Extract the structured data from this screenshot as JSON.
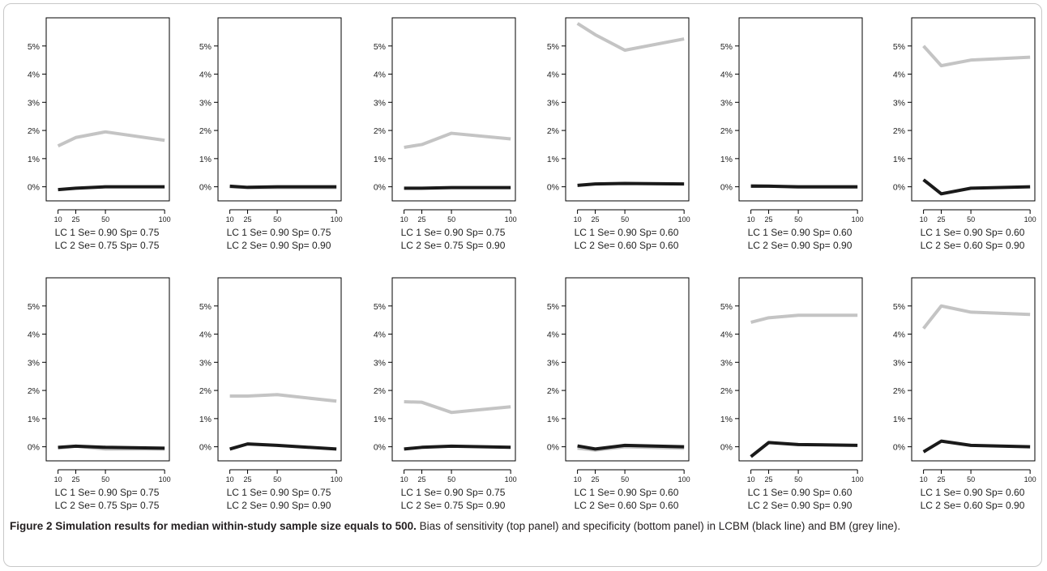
{
  "chart_data": {
    "type": "line",
    "x": [
      10,
      25,
      50,
      100
    ],
    "x_tick_labels": [
      "10",
      "25",
      "50",
      "100"
    ],
    "y_tick_labels": [
      "0%",
      "1%",
      "2%",
      "3%",
      "4%",
      "5%"
    ],
    "ylim": [
      -0.5,
      6.0
    ],
    "grid": false,
    "series_colors": {
      "LCBM": "#1a1a1a",
      "BM": "#c4c4c4"
    },
    "panels": [
      {
        "lc1": "LC 1  Se= 0.90 Sp= 0.75",
        "lc2": "LC 2  Se= 0.75 Sp= 0.75",
        "black": [
          -0.1,
          -0.05,
          0.0,
          0.0
        ],
        "grey": [
          1.45,
          1.75,
          1.95,
          1.65
        ]
      },
      {
        "lc1": "LC 1  Se= 0.90 Sp= 0.75",
        "lc2": "LC 2  Se= 0.90 Sp= 0.90",
        "black": [
          0.02,
          -0.02,
          0.0,
          0.0
        ],
        "grey": [
          0.0,
          -0.03,
          -0.03,
          -0.03
        ]
      },
      {
        "lc1": "LC 1  Se= 0.90 Sp= 0.75",
        "lc2": "LC 2  Se= 0.75 Sp= 0.90",
        "black": [
          -0.05,
          -0.05,
          -0.03,
          -0.03
        ],
        "grey": [
          1.4,
          1.5,
          1.9,
          1.7
        ]
      },
      {
        "lc1": "LC 1  Se= 0.90 Sp= 0.60",
        "lc2": "LC 2  Se= 0.60 Sp= 0.60",
        "black": [
          0.05,
          0.1,
          0.12,
          0.1
        ],
        "grey": [
          5.8,
          5.4,
          4.85,
          5.25
        ]
      },
      {
        "lc1": "LC 1  Se= 0.90 Sp= 0.60",
        "lc2": "LC 2  Se= 0.90 Sp= 0.90",
        "black": [
          0.02,
          0.02,
          0.0,
          0.0
        ],
        "grey": [
          0.05,
          0.03,
          -0.02,
          -0.02
        ]
      },
      {
        "lc1": "LC 1  Se= 0.90 Sp= 0.60",
        "lc2": "LC 2  Se= 0.60 Sp= 0.90",
        "black": [
          0.25,
          -0.25,
          -0.05,
          0.0
        ],
        "grey": [
          5.0,
          4.3,
          4.5,
          4.6
        ]
      },
      {
        "lc1": "LC 1  Se= 0.90 Sp= 0.75",
        "lc2": "LC 2  Se= 0.75 Sp= 0.75",
        "black": [
          -0.02,
          0.02,
          -0.02,
          -0.05
        ],
        "grey": [
          -0.05,
          0.02,
          -0.08,
          -0.08
        ]
      },
      {
        "lc1": "LC 1  Se= 0.90 Sp= 0.75",
        "lc2": "LC 2  Se= 0.90 Sp= 0.90",
        "black": [
          -0.08,
          0.1,
          0.05,
          -0.08
        ],
        "grey": [
          1.8,
          1.8,
          1.85,
          1.62
        ]
      },
      {
        "lc1": "LC 1  Se= 0.90 Sp= 0.75",
        "lc2": "LC 2  Se= 0.75 Sp= 0.90",
        "black": [
          -0.08,
          -0.02,
          0.02,
          -0.02
        ],
        "grey": [
          1.6,
          1.58,
          1.22,
          1.42
        ]
      },
      {
        "lc1": "LC 1  Se= 0.90 Sp= 0.60",
        "lc2": "LC 2  Se= 0.60 Sp= 0.60",
        "black": [
          0.03,
          -0.08,
          0.05,
          0.0
        ],
        "grey": [
          -0.05,
          -0.12,
          0.0,
          -0.05
        ]
      },
      {
        "lc1": "LC 1  Se= 0.90 Sp= 0.60",
        "lc2": "LC 2  Se= 0.90 Sp= 0.90",
        "black": [
          -0.35,
          0.15,
          0.08,
          0.05
        ],
        "grey": [
          4.42,
          4.58,
          4.67,
          4.67
        ]
      },
      {
        "lc1": "LC 1  Se= 0.90 Sp= 0.60",
        "lc2": "LC 2  Se= 0.60 Sp= 0.90",
        "black": [
          -0.18,
          0.2,
          0.05,
          0.0
        ],
        "grey": [
          4.2,
          5.0,
          4.78,
          4.7
        ]
      }
    ]
  },
  "caption": {
    "label": "Figure 2 Simulation results for median within-study sample size equals to 500.",
    "text": " Bias of sensitivity (top panel) and specificity (bottom panel) in LCBM (black line) and BM (grey line)."
  }
}
